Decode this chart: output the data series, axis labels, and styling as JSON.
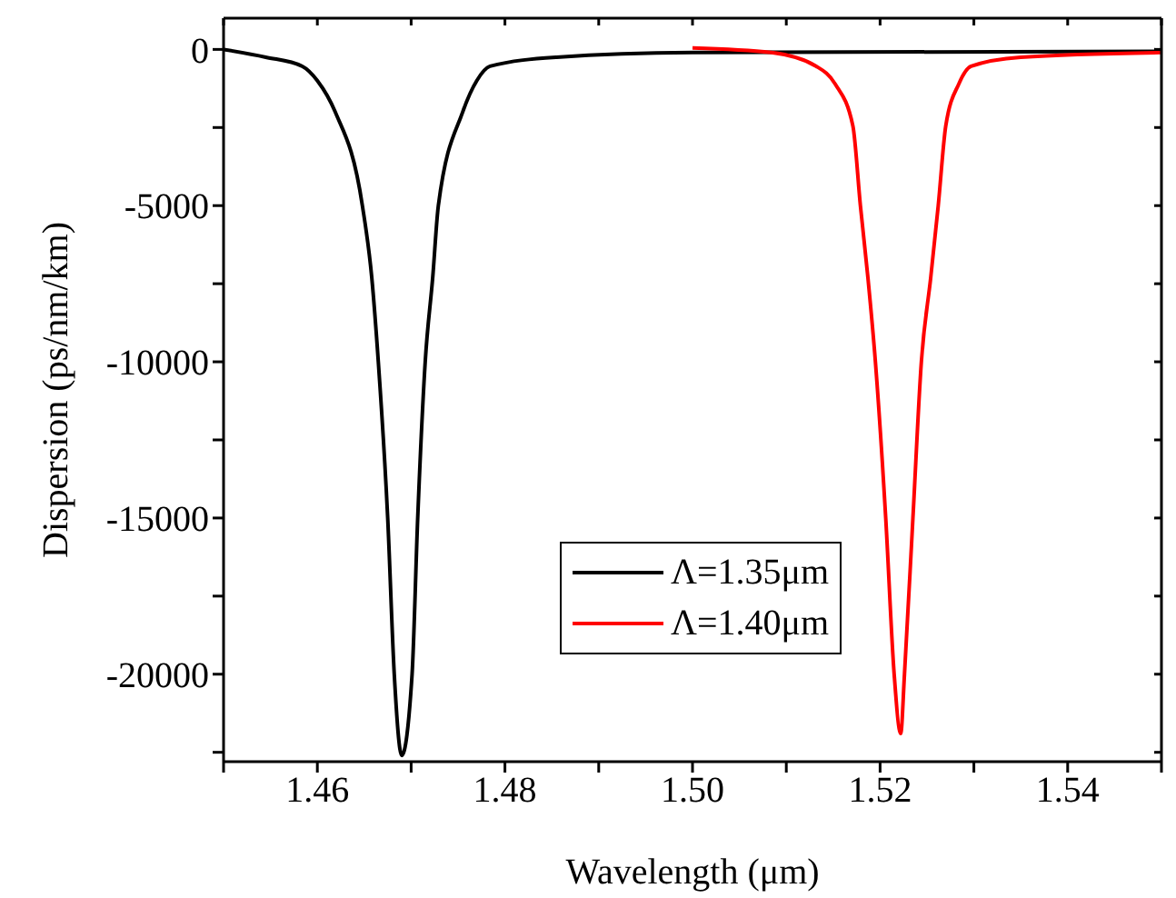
{
  "chart_data": {
    "type": "line",
    "xlabel": "Wavelength (μm)",
    "ylabel": "Dispersion (ps/nm/km)",
    "xlim": [
      1.45,
      1.55
    ],
    "ylim": [
      -22800,
      1000
    ],
    "xticks": [
      {
        "value": 1.45,
        "label": null
      },
      1.46,
      {
        "value": 1.47,
        "label": null
      },
      1.48,
      {
        "value": 1.49,
        "label": null
      },
      {
        "value": 1.5,
        "label": "1.50"
      },
      {
        "value": 1.51,
        "label": null
      },
      1.52,
      {
        "value": 1.53,
        "label": null
      },
      1.54,
      {
        "value": 1.55,
        "label": null
      }
    ],
    "yticks": [
      {
        "value": -22500,
        "label": null
      },
      -20000,
      {
        "value": -17500,
        "label": null
      },
      -15000,
      {
        "value": -12500,
        "label": null
      },
      -10000,
      {
        "value": -7500,
        "label": null
      },
      -5000,
      {
        "value": -2500,
        "label": null
      },
      0
    ],
    "legend": "center",
    "marker": "none",
    "line_style": "solid",
    "series": [
      {
        "name": "Λ=1.35μm",
        "color": "#000000",
        "x": [
          1.45,
          1.4545,
          1.4584,
          1.46,
          1.4619,
          1.4648,
          1.4658,
          1.4665,
          1.4675,
          1.4682,
          1.469,
          1.4701,
          1.4707,
          1.4715,
          1.4723,
          1.4729,
          1.4755,
          1.477,
          1.4784,
          1.4855,
          1.5,
          1.55
        ],
        "values": [
          0,
          -250,
          -540,
          -1000,
          -2000,
          -5000,
          -7300,
          -10000,
          -15000,
          -20000,
          -22600,
          -20000,
          -15000,
          -10000,
          -7300,
          -5000,
          -2000,
          -1000,
          -540,
          -250,
          -100,
          -60
        ]
      },
      {
        "name": "Λ=1.40μm",
        "color": "#ff0000",
        "x": [
          1.5,
          1.5084,
          1.5132,
          1.5152,
          1.5171,
          1.5179,
          1.5187,
          1.5195,
          1.5206,
          1.5215,
          1.5222,
          1.5226,
          1.5235,
          1.5244,
          1.5254,
          1.5262,
          1.527,
          1.5284,
          1.5297,
          1.535,
          1.55
        ],
        "values": [
          50,
          -100,
          -540,
          -1100,
          -2450,
          -5000,
          -7300,
          -10000,
          -15000,
          -20000,
          -21900,
          -20000,
          -15000,
          -10000,
          -7300,
          -5000,
          -2450,
          -1100,
          -540,
          -250,
          -100
        ]
      }
    ]
  }
}
